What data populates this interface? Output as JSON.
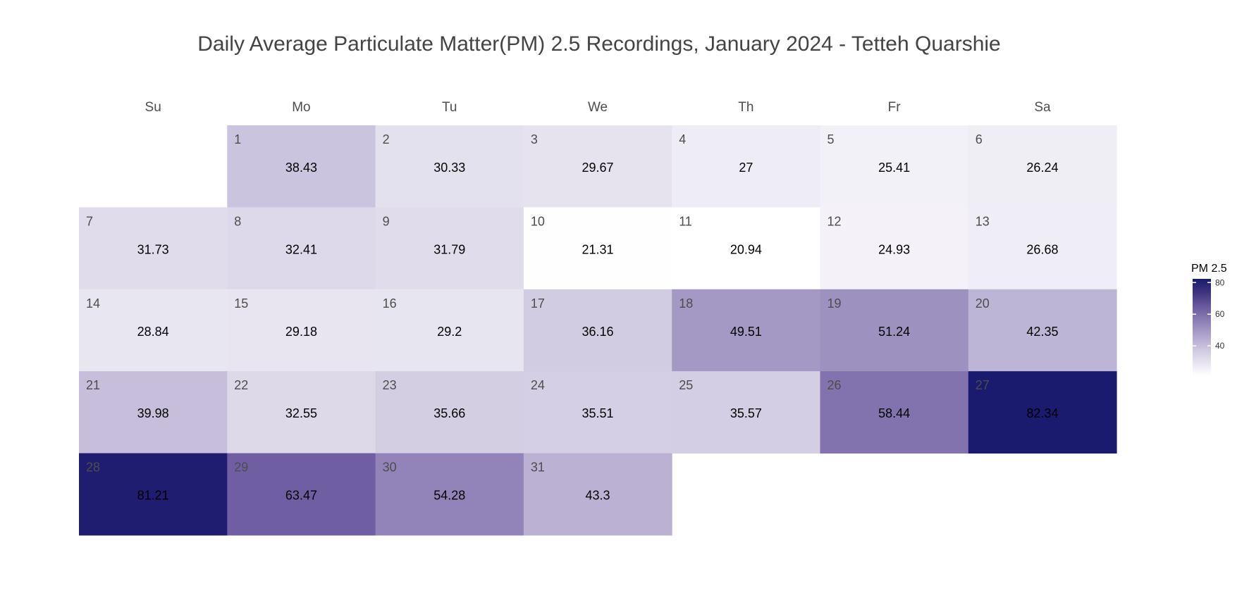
{
  "chart_data": {
    "type": "heatmap",
    "title": "Daily Average Particulate Matter(PM) 2.5 Recordings, January 2024 - Tetteh Quarshie",
    "weekdays": [
      "Su",
      "Mo",
      "Tu",
      "We",
      "Th",
      "Fr",
      "Sa"
    ],
    "first_weekday_index": 1,
    "days": [
      {
        "day": "1",
        "value": 38.43,
        "label": "38.43"
      },
      {
        "day": "2",
        "value": 30.33,
        "label": "30.33"
      },
      {
        "day": "3",
        "value": 29.67,
        "label": "29.67"
      },
      {
        "day": "4",
        "value": 27,
        "label": "27"
      },
      {
        "day": "5",
        "value": 25.41,
        "label": "25.41"
      },
      {
        "day": "6",
        "value": 26.24,
        "label": "26.24"
      },
      {
        "day": "7",
        "value": 31.73,
        "label": "31.73"
      },
      {
        "day": "8",
        "value": 32.41,
        "label": "32.41"
      },
      {
        "day": "9",
        "value": 31.79,
        "label": "31.79"
      },
      {
        "day": "10",
        "value": 21.31,
        "label": "21.31"
      },
      {
        "day": "11",
        "value": 20.94,
        "label": "20.94"
      },
      {
        "day": "12",
        "value": 24.93,
        "label": "24.93"
      },
      {
        "day": "13",
        "value": 26.68,
        "label": "26.68"
      },
      {
        "day": "14",
        "value": 28.84,
        "label": "28.84"
      },
      {
        "day": "15",
        "value": 29.18,
        "label": "29.18"
      },
      {
        "day": "16",
        "value": 29.2,
        "label": "29.2"
      },
      {
        "day": "17",
        "value": 36.16,
        "label": "36.16"
      },
      {
        "day": "18",
        "value": 49.51,
        "label": "49.51"
      },
      {
        "day": "19",
        "value": 51.24,
        "label": "51.24"
      },
      {
        "day": "20",
        "value": 42.35,
        "label": "42.35"
      },
      {
        "day": "21",
        "value": 39.98,
        "label": "39.98"
      },
      {
        "day": "22",
        "value": 32.55,
        "label": "32.55"
      },
      {
        "day": "23",
        "value": 35.66,
        "label": "35.66"
      },
      {
        "day": "24",
        "value": 35.51,
        "label": "35.51"
      },
      {
        "day": "25",
        "value": 35.57,
        "label": "35.57"
      },
      {
        "day": "26",
        "value": 58.44,
        "label": "58.44"
      },
      {
        "day": "27",
        "value": 82.34,
        "label": "82.34"
      },
      {
        "day": "28",
        "value": 81.21,
        "label": "81.21"
      },
      {
        "day": "29",
        "value": 63.47,
        "label": "63.47"
      },
      {
        "day": "30",
        "value": 54.28,
        "label": "54.28"
      },
      {
        "day": "31",
        "value": 43.3,
        "label": "43.3"
      }
    ],
    "legend": {
      "title": "PM 2.5",
      "ticks": [
        "80",
        "60",
        "40"
      ],
      "tick_values": [
        80,
        60,
        40
      ],
      "range": [
        20.94,
        82.34
      ]
    },
    "colors": {
      "low": "#ffffff",
      "high": "#1a1a6e",
      "mid_stops": [
        "#ffffff",
        "#e6e3ef",
        "#cbc4de",
        "#aca1ca",
        "#8b7db4",
        "#6a5a9f",
        "#3f347e",
        "#1a1a6e"
      ]
    }
  }
}
